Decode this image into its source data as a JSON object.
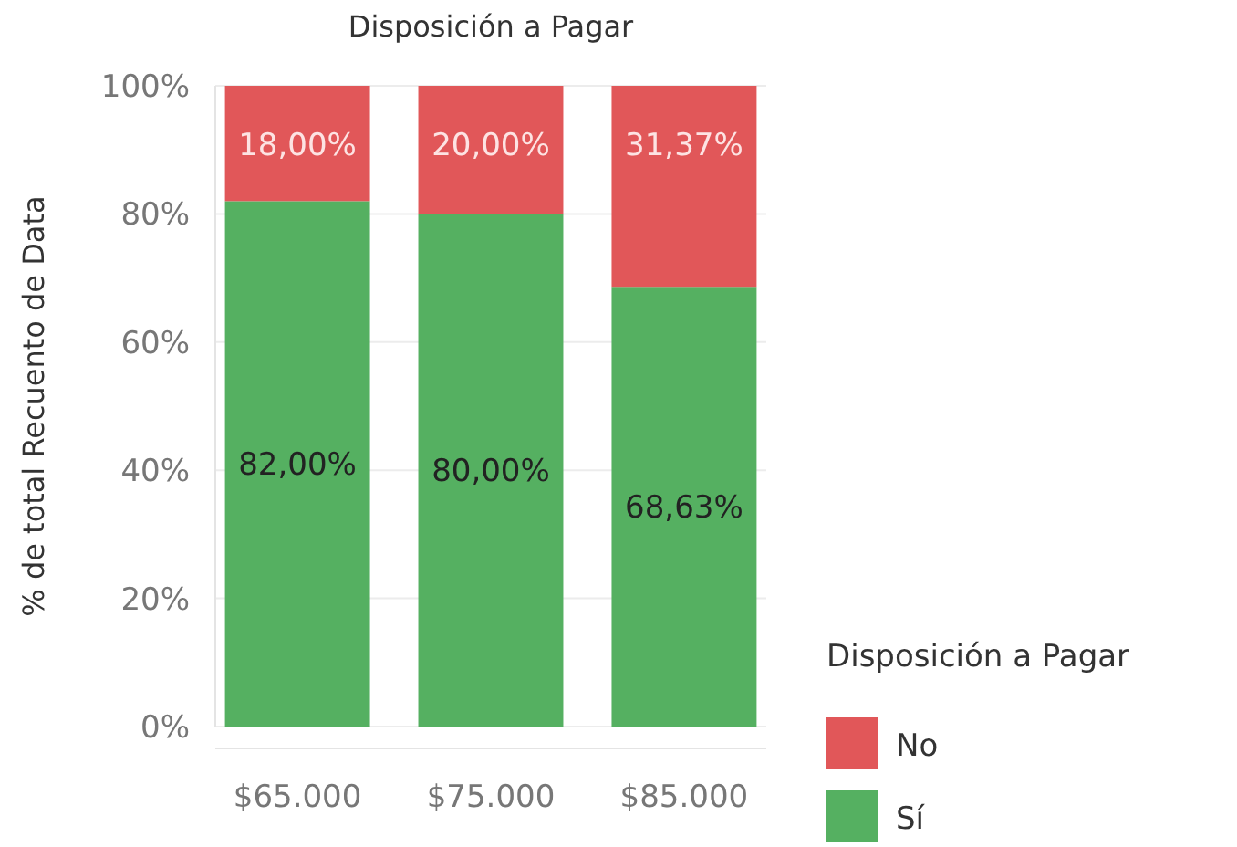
{
  "chart_data": {
    "type": "bar",
    "title": "Disposición a Pagar",
    "ylabel": "% de total Recuento de Data",
    "legend_title": "Disposición a Pagar",
    "categories": [
      "$65.000",
      "$75.000",
      "$85.000"
    ],
    "stacked": true,
    "ylim": [
      0,
      100
    ],
    "yticks": [
      {
        "value": 0,
        "label": "0%"
      },
      {
        "value": 20,
        "label": "20%"
      },
      {
        "value": 40,
        "label": "40%"
      },
      {
        "value": 60,
        "label": "60%"
      },
      {
        "value": 80,
        "label": "80%"
      },
      {
        "value": 100,
        "label": "100%"
      }
    ],
    "grid": "y",
    "legend": "bottom right",
    "series": [
      {
        "name": "Sí",
        "color": "#55b061",
        "values": [
          82,
          80,
          68.63
        ],
        "value_labels": [
          "82,00%",
          "80,00%",
          "68,63%"
        ]
      },
      {
        "name": "No",
        "color": "#e15759",
        "values": [
          18,
          20,
          31.37
        ],
        "value_labels": [
          "18,00%",
          "20,00%",
          "31,37%"
        ]
      }
    ]
  }
}
